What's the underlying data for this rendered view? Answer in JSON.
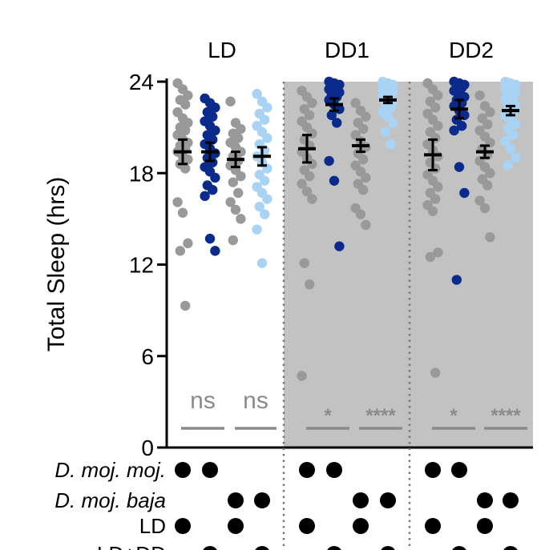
{
  "chart_data": {
    "type": "scatter",
    "ylabel": "Total Sleep (hrs)",
    "ylim": [
      0,
      24
    ],
    "yticks": [
      0,
      6,
      12,
      18,
      24
    ],
    "panels": [
      {
        "label": "LD",
        "shaded": false,
        "groups": [
          {
            "color": "#999999",
            "mean": 19.4,
            "sem": 0.8,
            "points": [
              23.9,
              23.5,
              23.1,
              22.8,
              22.5,
              22.0,
              21.6,
              21.3,
              21.0,
              20.8,
              20.5,
              20.2,
              20.0,
              19.8,
              19.6,
              19.4,
              19.1,
              18.9,
              18.6,
              18.3,
              16.1,
              15.4,
              13.4,
              12.9,
              9.3
            ]
          },
          {
            "color": "#0a2a8c",
            "mean": 19.4,
            "sem": 0.6,
            "points": [
              22.9,
              22.6,
              22.3,
              22.0,
              21.7,
              21.4,
              21.1,
              20.8,
              20.5,
              20.2,
              19.9,
              19.6,
              19.3,
              19.0,
              18.7,
              18.4,
              18.1,
              17.7,
              17.2,
              16.9,
              16.5,
              13.7,
              12.9
            ]
          },
          {
            "color": "#999999",
            "mean": 18.9,
            "sem": 0.5,
            "points": [
              22.7,
              21.3,
              20.9,
              20.6,
              20.3,
              20.0,
              19.7,
              19.4,
              19.1,
              18.8,
              18.5,
              18.2,
              17.8,
              17.4,
              16.7,
              16.1,
              15.6,
              15.0,
              13.6
            ]
          },
          {
            "color": "#a9d3f5",
            "mean": 19.1,
            "sem": 0.6,
            "points": [
              23.2,
              22.7,
              22.3,
              21.9,
              21.5,
              21.1,
              20.7,
              20.3,
              19.9,
              19.5,
              19.1,
              18.7,
              18.3,
              17.9,
              17.5,
              17.1,
              16.7,
              16.3,
              15.8,
              15.3,
              14.3,
              12.1
            ]
          }
        ],
        "stats": [
          "ns",
          "ns"
        ]
      },
      {
        "label": "DD1",
        "shaded": true,
        "groups": [
          {
            "color": "#999999",
            "mean": 19.6,
            "sem": 0.9,
            "points": [
              23.4,
              23.0,
              22.6,
              22.2,
              21.8,
              21.4,
              21.0,
              20.6,
              20.2,
              19.8,
              19.4,
              19.0,
              18.6,
              18.2,
              17.8,
              17.3,
              16.8,
              16.3,
              12.1,
              10.7,
              4.7
            ]
          },
          {
            "color": "#0a2a8c",
            "mean": 22.5,
            "sem": 0.4,
            "points": [
              24.0,
              23.9,
              23.8,
              23.7,
              23.6,
              23.5,
              23.4,
              23.3,
              23.2,
              23.0,
              22.8,
              22.5,
              22.2,
              21.8,
              21.3,
              18.8,
              17.5,
              13.2
            ]
          },
          {
            "color": "#999999",
            "mean": 19.8,
            "sem": 0.4,
            "points": [
              22.6,
              22.1,
              21.7,
              21.3,
              20.9,
              20.5,
              20.1,
              19.7,
              19.3,
              18.9,
              18.5,
              18.1,
              17.7,
              17.3,
              16.9,
              15.7,
              15.3,
              14.6
            ]
          },
          {
            "color": "#a9d3f5",
            "mean": 22.8,
            "sem": 0.2,
            "points": [
              24.0,
              23.9,
              23.8,
              23.7,
              23.6,
              23.5,
              23.4,
              23.3,
              23.2,
              23.1,
              23.0,
              22.9,
              22.7,
              22.5,
              22.3,
              22.0,
              21.7,
              21.3,
              20.7,
              19.9
            ]
          }
        ],
        "stats": [
          "*",
          "****"
        ]
      },
      {
        "label": "DD2",
        "shaded": true,
        "groups": [
          {
            "color": "#999999",
            "mean": 19.2,
            "sem": 1.0,
            "points": [
              23.9,
              23.5,
              23.1,
              22.7,
              22.3,
              21.9,
              21.5,
              21.1,
              20.7,
              20.3,
              19.9,
              19.5,
              19.1,
              18.7,
              18.3,
              17.9,
              17.5,
              17.1,
              16.7,
              16.3,
              15.9,
              15.5,
              12.8,
              12.5,
              4.9
            ]
          },
          {
            "color": "#0a2a8c",
            "mean": 22.2,
            "sem": 0.6,
            "points": [
              24.0,
              23.9,
              23.8,
              23.7,
              23.6,
              23.4,
              23.2,
              23.0,
              22.8,
              22.6,
              22.4,
              22.1,
              21.8,
              21.5,
              21.1,
              20.8,
              18.4,
              16.7,
              11.0
            ]
          },
          {
            "color": "#999999",
            "mean": 19.4,
            "sem": 0.4,
            "points": [
              23.1,
              22.4,
              22.0,
              21.6,
              21.2,
              20.8,
              20.4,
              20.0,
              19.6,
              19.2,
              18.8,
              18.4,
              18.0,
              17.6,
              17.2,
              16.2,
              15.7,
              13.8
            ]
          },
          {
            "color": "#a9d3f5",
            "mean": 22.1,
            "sem": 0.3,
            "points": [
              24.0,
              23.9,
              23.8,
              23.7,
              23.6,
              23.5,
              23.4,
              23.3,
              23.2,
              23.0,
              22.8,
              22.6,
              22.4,
              22.2,
              22.0,
              21.8,
              21.5,
              21.2,
              20.9,
              20.5,
              20.1,
              19.6,
              19.0,
              18.5
            ]
          }
        ],
        "stats": [
          "*",
          "****"
        ]
      }
    ],
    "matrix": {
      "rows": [
        {
          "label": "D. moj. moj.",
          "italic": true,
          "groups": [
            true,
            true,
            false,
            false
          ]
        },
        {
          "label": "D. moj. baja",
          "italic": true,
          "groups": [
            false,
            false,
            true,
            true
          ]
        },
        {
          "label": "LD",
          "italic": false,
          "groups": [
            true,
            false,
            true,
            false
          ]
        },
        {
          "label": "LD+DD",
          "italic": false,
          "groups": [
            false,
            true,
            false,
            true
          ]
        }
      ]
    },
    "colors": {
      "gray": "#999999",
      "navy": "#0a2a8c",
      "lightblue": "#a9d3f5",
      "shade": "#c2c2c2",
      "stat": "#8a8a8a"
    }
  }
}
